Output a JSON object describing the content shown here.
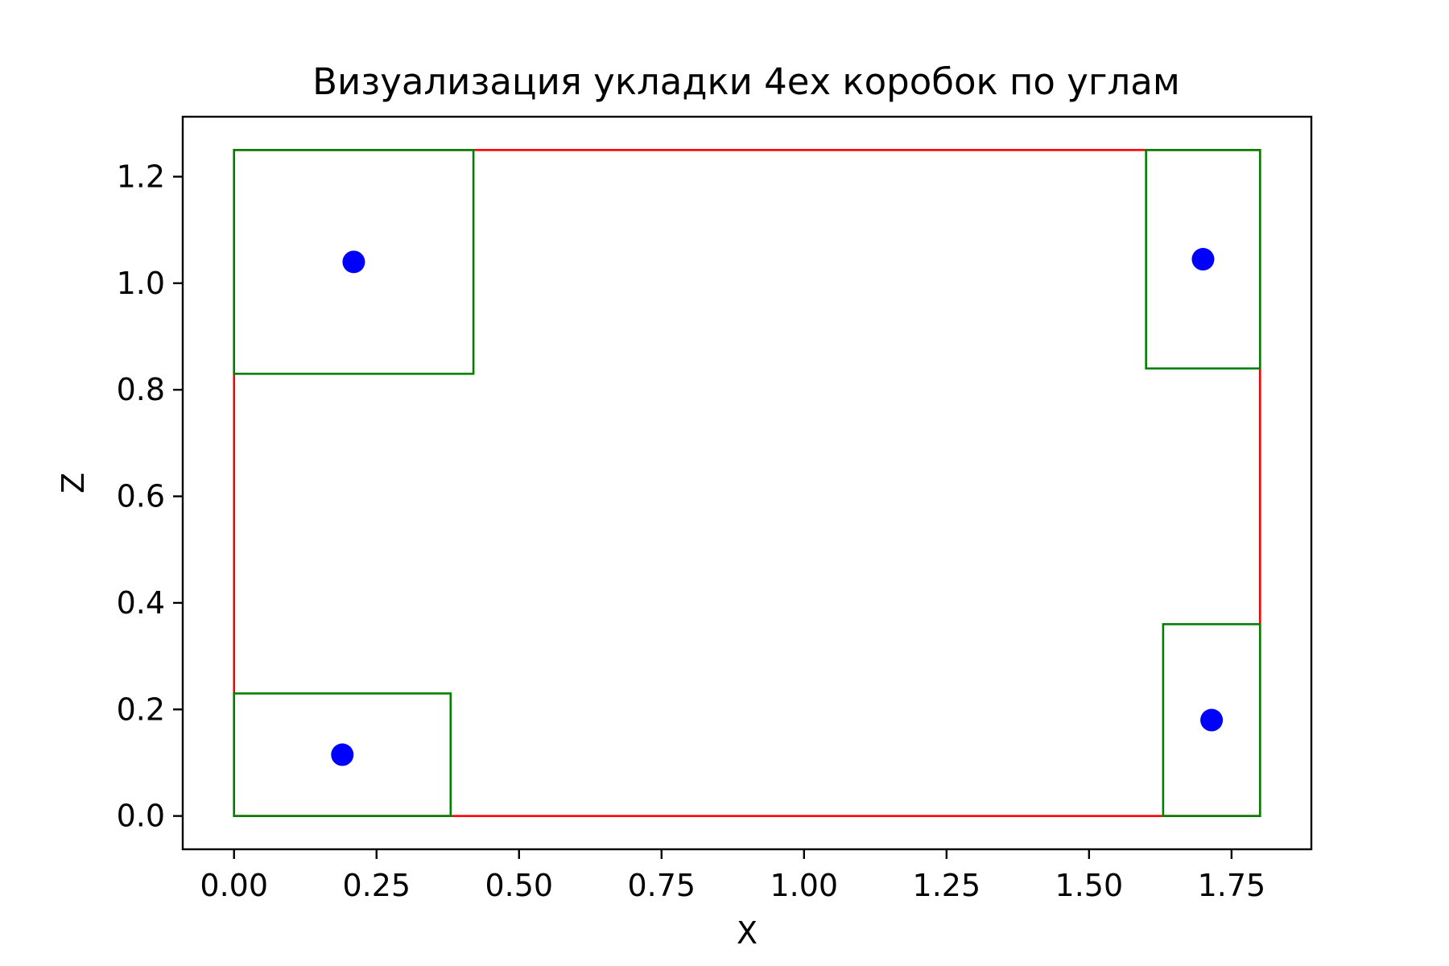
{
  "chart_data": {
    "type": "scatter",
    "title": "Визуализация укладки 4ех коробок по углам",
    "xlabel": "X",
    "ylabel": "Z",
    "xlim": [
      -0.09,
      1.89
    ],
    "ylim": [
      -0.0625,
      1.3125
    ],
    "x_ticks": [
      0.0,
      0.25,
      0.5,
      0.75,
      1.0,
      1.25,
      1.5,
      1.75
    ],
    "x_tick_labels": [
      "0.00",
      "0.25",
      "0.50",
      "0.75",
      "1.00",
      "1.25",
      "1.50",
      "1.75"
    ],
    "y_ticks": [
      0.0,
      0.2,
      0.4,
      0.6,
      0.8,
      1.0,
      1.2
    ],
    "y_tick_labels": [
      "0.0",
      "0.2",
      "0.4",
      "0.6",
      "0.8",
      "1.0",
      "1.2"
    ],
    "grid": false,
    "container": {
      "x0": 0.0,
      "x1": 1.8,
      "z0": 0.0,
      "z1": 1.25,
      "color": "#ff0000"
    },
    "boxes": [
      {
        "x0": 0.0,
        "x1": 0.38,
        "z0": 0.0,
        "z1": 0.23
      },
      {
        "x0": 0.0,
        "x1": 0.42,
        "z0": 0.83,
        "z1": 1.25
      },
      {
        "x0": 1.6,
        "x1": 1.8,
        "z0": 0.84,
        "z1": 1.25
      },
      {
        "x0": 1.63,
        "x1": 1.8,
        "z0": 0.0,
        "z1": 0.36
      }
    ],
    "box_color": "#008000",
    "points": [
      {
        "x": 0.19,
        "y": 0.115
      },
      {
        "x": 0.21,
        "y": 1.04
      },
      {
        "x": 1.7,
        "y": 1.045
      },
      {
        "x": 1.715,
        "y": 0.18
      }
    ],
    "point_color": "#0000ff"
  }
}
